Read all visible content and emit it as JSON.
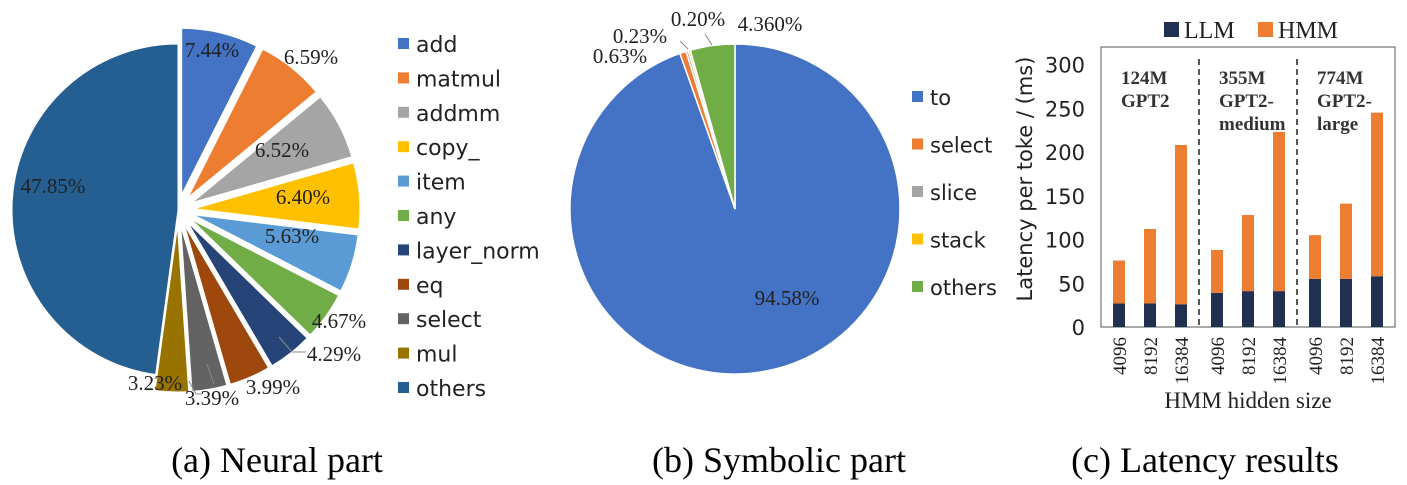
{
  "captions": {
    "a": "(a) Neural part",
    "b": "(b) Symbolic part",
    "c": "(c) Latency results"
  },
  "chart_data": [
    {
      "id": "a",
      "type": "pie",
      "title": "",
      "categories": [
        "add",
        "matmul",
        "addmm",
        "copy_",
        "item",
        "any",
        "layer_norm",
        "eq",
        "select",
        "mul",
        "others"
      ],
      "values": [
        7.44,
        6.59,
        6.52,
        6.4,
        5.63,
        4.67,
        4.29,
        3.99,
        3.39,
        3.23,
        47.85
      ],
      "data_labels": [
        "7.44%",
        "6.59%",
        "6.52%",
        "6.40%",
        "5.63%",
        "4.67%",
        "4.29%",
        "3.99%",
        "3.39%",
        "3.23%",
        "47.85%"
      ],
      "colors": [
        "#4472C4",
        "#ED7D31",
        "#A5A5A5",
        "#FFC000",
        "#5B9BD5",
        "#70AD47",
        "#264478",
        "#9E480E",
        "#636363",
        "#997300",
        "#255E91"
      ],
      "exploded": true,
      "legend": "right"
    },
    {
      "id": "b",
      "type": "pie",
      "title": "",
      "categories": [
        "to",
        "select",
        "slice",
        "stack",
        "others"
      ],
      "values": [
        94.58,
        0.63,
        0.23,
        0.2,
        4.36
      ],
      "data_labels": [
        "94.58%",
        "0.63%",
        "0.23%",
        "0.20%",
        "4.360%"
      ],
      "colors": [
        "#4472C4",
        "#ED7D31",
        "#A5A5A5",
        "#FFC000",
        "#70AD47"
      ],
      "legend": "right"
    },
    {
      "id": "c",
      "type": "bar",
      "stacked": true,
      "title": "",
      "xlabel": "HMM hidden size",
      "ylabel": "Latency per toke / (ms)",
      "categories": [
        "4096",
        "8192",
        "16384",
        "4096",
        "8192",
        "16384",
        "4096",
        "8192",
        "16384"
      ],
      "series": [
        {
          "name": "LLM",
          "color": "#203050",
          "values": [
            27,
            27,
            26,
            39,
            41,
            41,
            55,
            55,
            58
          ]
        },
        {
          "name": "HMM",
          "color": "#ED7D31",
          "values": [
            49,
            85,
            182,
            49,
            87,
            182,
            50,
            86,
            187
          ]
        }
      ],
      "ylim": [
        0,
        320
      ],
      "yticks": [
        "0",
        "50",
        "100",
        "150",
        "200",
        "250",
        "300"
      ],
      "groups": [
        {
          "label_lines": [
            "124M",
            "GPT2"
          ]
        },
        {
          "label_lines": [
            "355M",
            "GPT2-",
            "medium"
          ]
        },
        {
          "label_lines": [
            "774M",
            "GPT2-",
            "large"
          ]
        }
      ],
      "legend": "top"
    }
  ]
}
